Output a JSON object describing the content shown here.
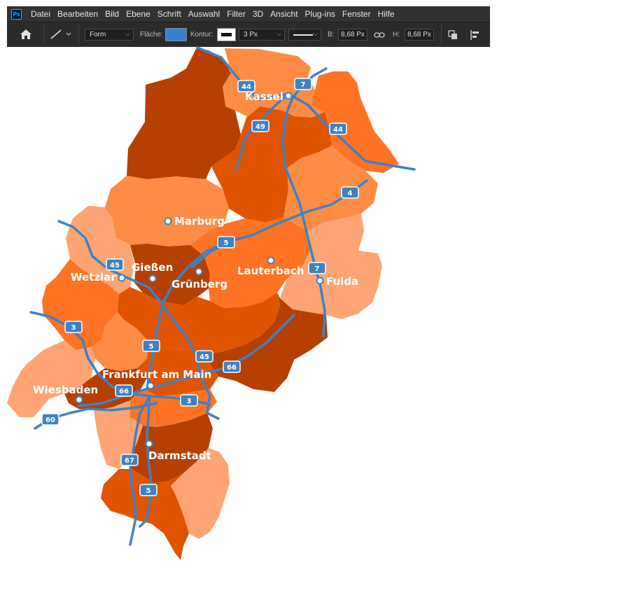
{
  "app": {
    "logo": "Ps"
  },
  "menu": [
    "Datei",
    "Bearbeiten",
    "Bild",
    "Ebene",
    "Schrift",
    "Auswahl",
    "Filter",
    "3D",
    "Ansicht",
    "Plug-ins",
    "Fenster",
    "Hilfe"
  ],
  "options": {
    "home_icon": "home-icon",
    "tool_icon": "line-tool-icon",
    "mode_value": "Form",
    "fill_label": "Fläche:",
    "fill_color": "#3d82c6",
    "stroke_label": "Kontur:",
    "stroke_width": "3 Px",
    "w_label": "B:",
    "w_value": "8,68 Px",
    "link_icon": "link-icon",
    "h_label": "H:",
    "h_value": "8,68 Px"
  },
  "colors": {
    "darkest": "#b54000",
    "dark": "#e05400",
    "medium": "#ff7325",
    "light": "#ff8c45",
    "lightest": "#ffa474",
    "road": "#3d82c6"
  },
  "map": {
    "cities": [
      "Kassel",
      "Marburg",
      "Gießen",
      "Wetzlar",
      "Grünberg",
      "Lauterbach",
      "Fulda",
      "Frankfurt am Main",
      "Wiesbaden",
      "Darmstadt"
    ],
    "shields": [
      "44",
      "7",
      "49",
      "44",
      "4",
      "5",
      "45",
      "7",
      "3",
      "5",
      "45",
      "66",
      "66",
      "3",
      "60",
      "67",
      "5"
    ]
  }
}
